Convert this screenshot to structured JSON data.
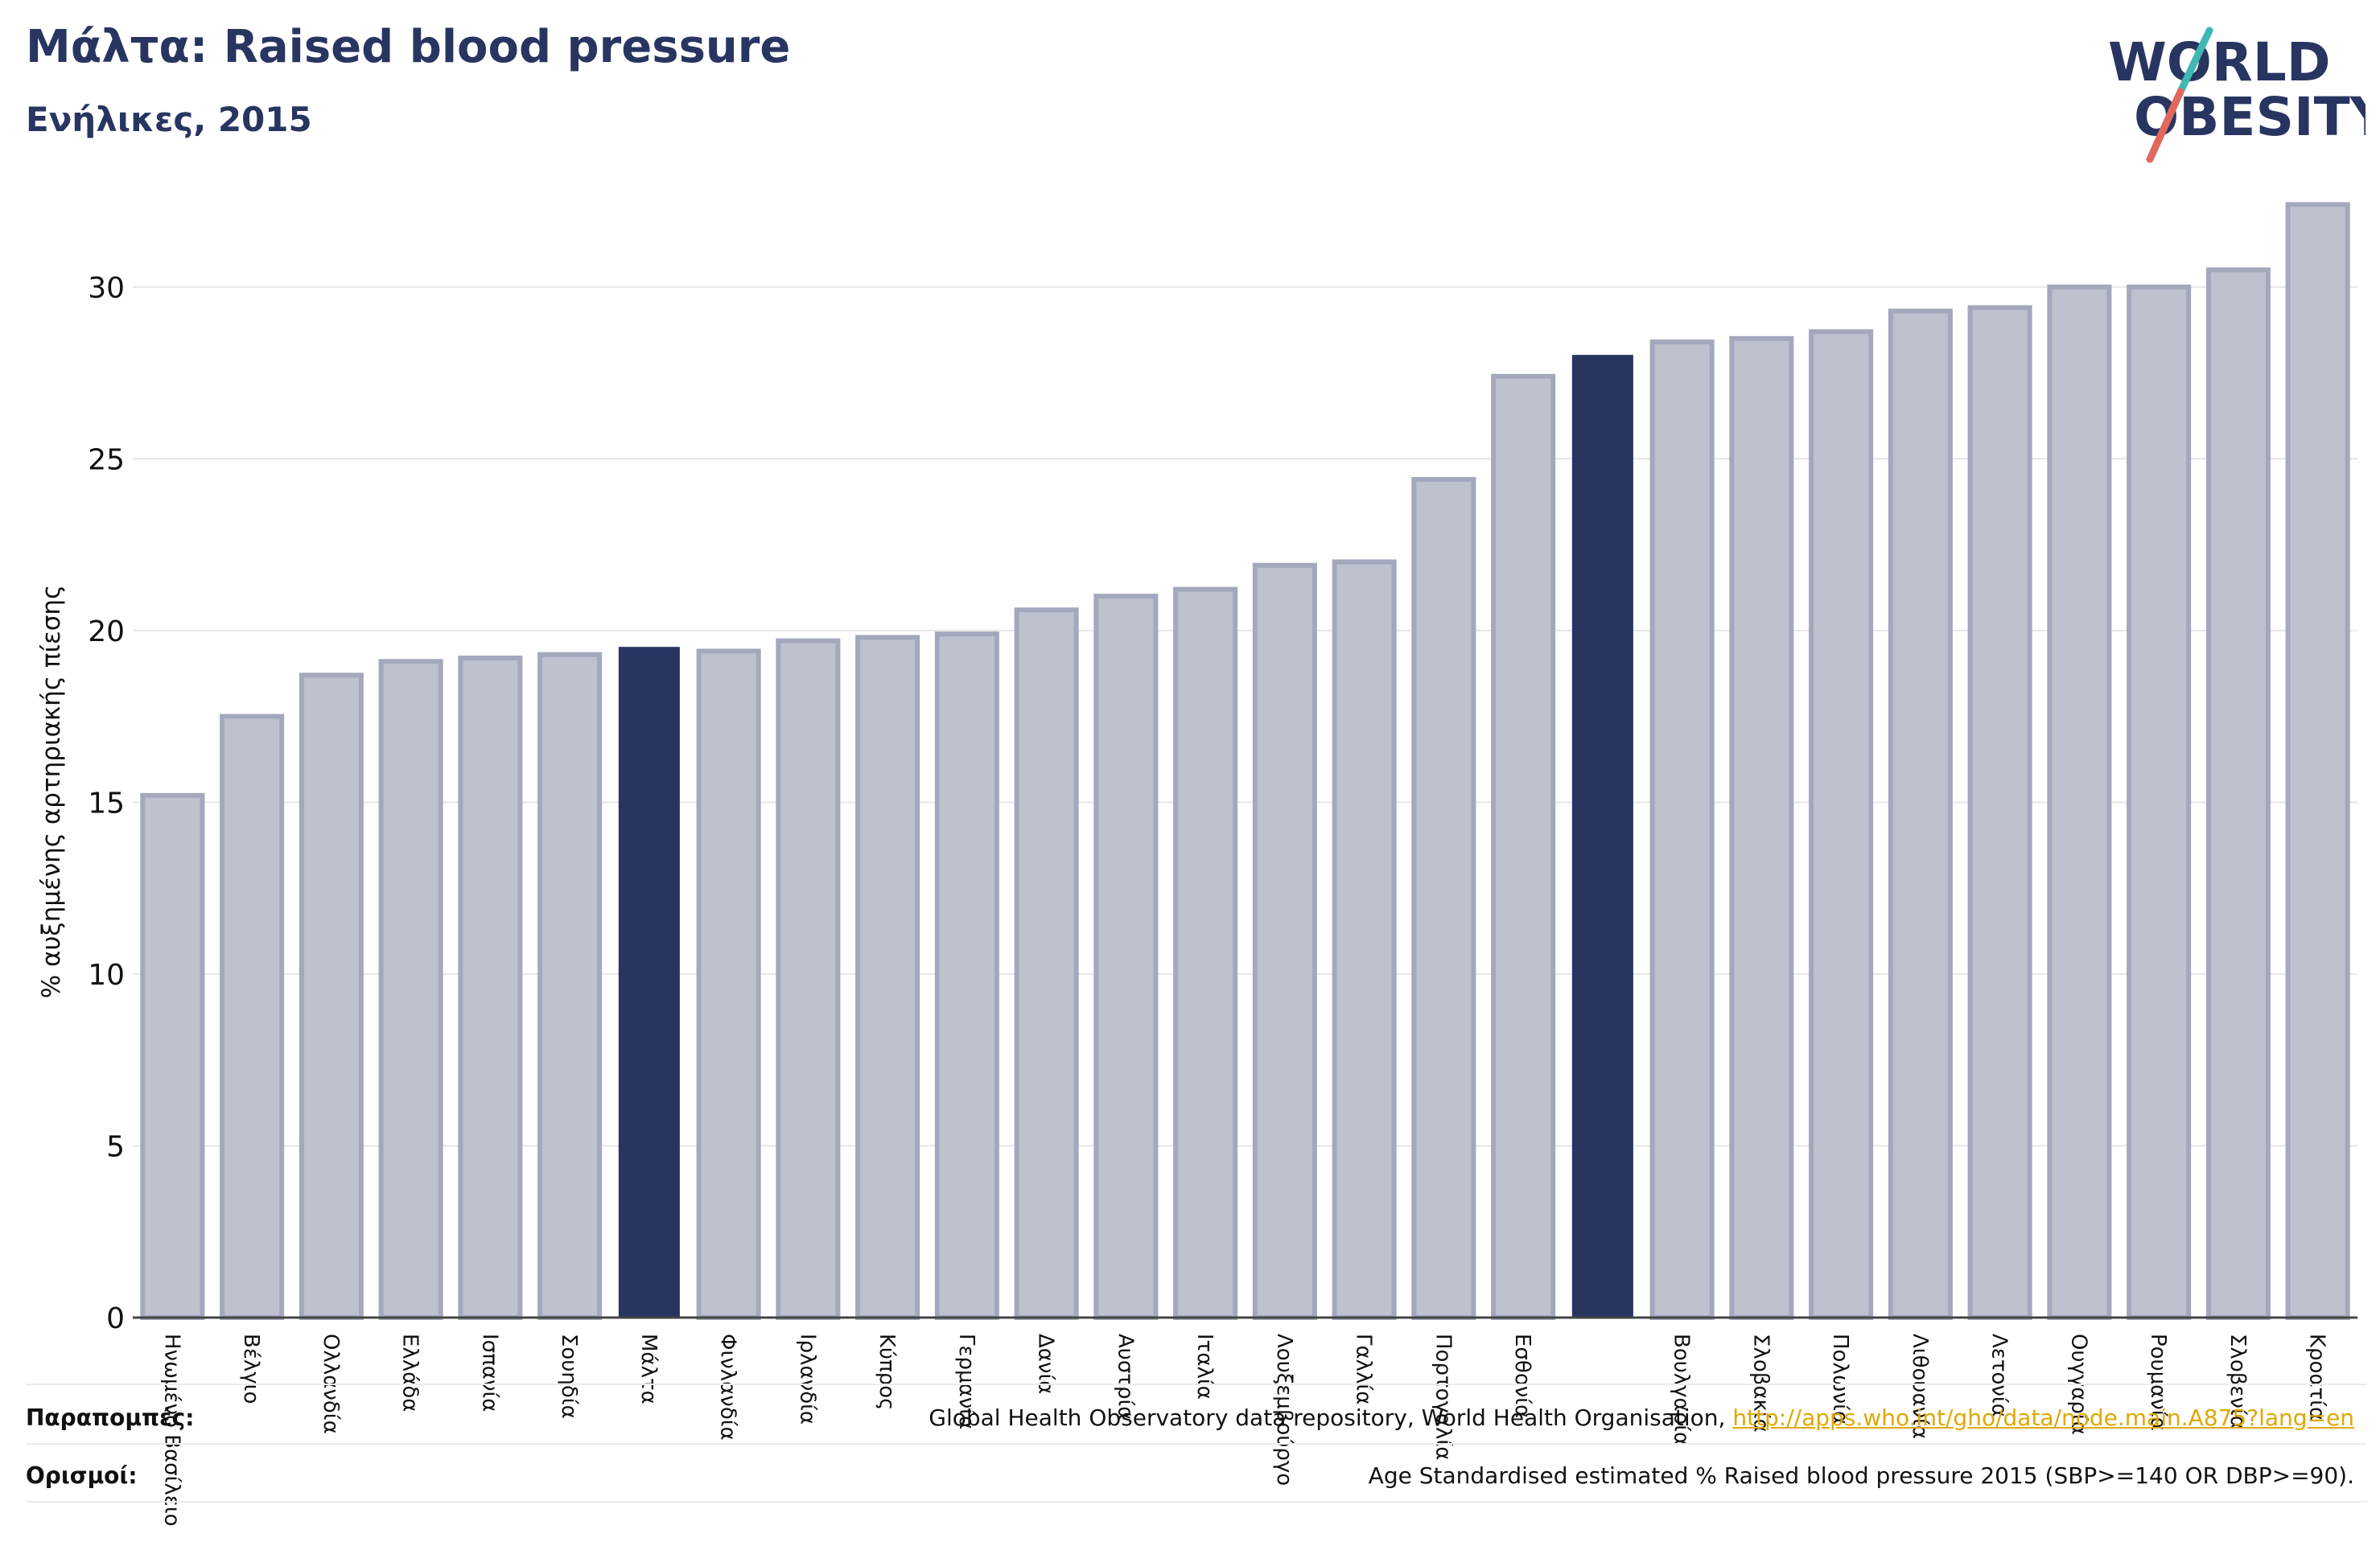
{
  "header": {
    "title": "Μάλτα: Raised blood pressure",
    "subtitle": "Ενήλικες, 2015"
  },
  "logo": {
    "line1": "WORLD",
    "line2": "OBESITY"
  },
  "footer": {
    "references_label": "Παραπομπές:",
    "references_text": "Global Health Observatory data repository, World Health Organisation, ",
    "references_link": "http://apps.who.int/gho/data/node.main.A875?lang=en",
    "definitions_label": "Ορισμοί:",
    "definitions_text": "Age Standardised estimated % Raised blood pressure 2015 (SBP>=140 OR DBP>=90)."
  },
  "colors": {
    "title": "#283561",
    "bar_default": "#bec2cf",
    "bar_default_border": "#a3a8bd",
    "bar_highlight": "#283561",
    "logo_teal": "#3fb8b4",
    "logo_red": "#e2685d",
    "link": "#e0a800"
  },
  "chart_data": {
    "type": "bar",
    "ylabel": "% αυξημένης αρτηριακής πίεσης",
    "xlabel": "",
    "ylim": [
      0,
      32.5
    ],
    "yticks": [
      0,
      5,
      10,
      15,
      20,
      25,
      30
    ],
    "grid": true,
    "categories": [
      "Ηνωμένο Βασίλειο",
      "Βέλγιο",
      "Ολλανδία",
      "Ελλάδα",
      "Ισπανία",
      "Σουηδία",
      "Μάλτα",
      "Φινλανδία",
      "Ιρλανδία",
      "Κύπρος",
      "Γερμανία",
      "Δανία",
      "Αυστρία",
      "Ιταλία",
      "Λουξεμβούργο",
      "Γαλλία",
      "Πορτογαλία",
      "Εσθονία",
      "",
      "Βουλγαρία",
      "Σλοβακία",
      "Πολωνία",
      "Λιθουανία",
      "Λετονία",
      "Ουγγαρία",
      "Ρουμανία",
      "Σλοβενία",
      "Κροατία"
    ],
    "values": [
      15.2,
      17.5,
      18.7,
      19.1,
      19.2,
      19.3,
      19.5,
      19.4,
      19.7,
      19.8,
      19.9,
      20.6,
      21.0,
      21.2,
      21.9,
      22.0,
      24.4,
      27.4,
      28.0,
      28.4,
      28.5,
      28.7,
      29.3,
      29.4,
      30.0,
      30.0,
      30.5,
      32.4
    ],
    "highlight": [
      6,
      18
    ]
  }
}
